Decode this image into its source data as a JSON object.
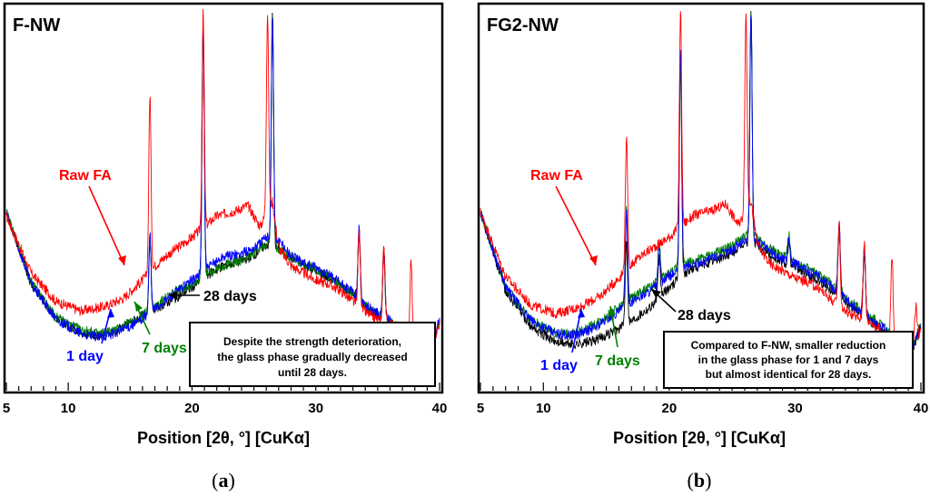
{
  "chart_data": [
    {
      "type": "line",
      "panel_title": "F-NW",
      "sub_label": "a",
      "xlabel": "Position [2θ, °] [CuKα]",
      "ylabel": "",
      "xlim": [
        5,
        40
      ],
      "x_ticks": [
        5,
        10,
        20,
        30,
        40
      ],
      "note": [
        "Despite the strength deterioration,",
        "the glass phase gradually decreased",
        "until 28 days."
      ],
      "series": [
        {
          "name": "Raw FA",
          "label": "Raw FA",
          "color": "#ff0000",
          "x": [
            5,
            7,
            9,
            11,
            13,
            14.5,
            16,
            17,
            18,
            20,
            21,
            22,
            23.5,
            24.5,
            25.5,
            26.5,
            27,
            28,
            29,
            30,
            31,
            32,
            33,
            34,
            35,
            36,
            37,
            38,
            39,
            40
          ],
          "y": [
            245,
            165,
            125,
            112,
            118,
            130,
            155,
            175,
            190,
            215,
            230,
            245,
            252,
            260,
            230,
            265,
            200,
            175,
            165,
            155,
            150,
            140,
            125,
            110,
            100,
            95,
            80,
            60,
            45,
            95
          ],
          "peaks": [
            [
              16.6,
              415
            ],
            [
              20.9,
              530
            ],
            [
              26.1,
              530
            ],
            [
              33.5,
              225
            ],
            [
              35.5,
              205
            ],
            [
              37.7,
              185
            ]
          ]
        },
        {
          "name": "1 day",
          "label": "1 day",
          "color": "#0000ff",
          "x": [
            5,
            7,
            9,
            11,
            12.5,
            14,
            15.5,
            17,
            18.5,
            20,
            21.5,
            22.5,
            24,
            25,
            26,
            27,
            28,
            29,
            30,
            31,
            32,
            33,
            34,
            35,
            36,
            37,
            38,
            39,
            40
          ],
          "y": [
            248,
            150,
            100,
            80,
            75,
            82,
            95,
            115,
            135,
            155,
            175,
            188,
            192,
            200,
            215,
            210,
            190,
            180,
            172,
            163,
            150,
            138,
            120,
            108,
            98,
            85,
            65,
            45,
            100
          ],
          "peaks": [
            [
              16.6,
              220
            ],
            [
              20.9,
              520
            ],
            [
              26.5,
              530
            ],
            [
              33.5,
              230
            ],
            [
              35.5,
              200
            ]
          ]
        },
        {
          "name": "7 days",
          "label": "7 days",
          "color": "#008000",
          "x": [
            5,
            7,
            9,
            11,
            12.5,
            14,
            15.5,
            17,
            18.5,
            20,
            21.5,
            22.5,
            24,
            25,
            26,
            27,
            28,
            29,
            30,
            31,
            32,
            33,
            34,
            35,
            36,
            37,
            38,
            39,
            40
          ],
          "y": [
            250,
            152,
            103,
            85,
            80,
            86,
            100,
            118,
            138,
            150,
            165,
            175,
            183,
            192,
            207,
            200,
            187,
            178,
            170,
            160,
            148,
            136,
            119,
            107,
            97,
            84,
            63,
            44,
            98
          ],
          "peaks": [
            [
              16.6,
              215
            ],
            [
              20.9,
              515
            ],
            [
              26.5,
              530
            ],
            [
              33.5,
              225
            ],
            [
              35.5,
              195
            ]
          ]
        },
        {
          "name": "28 days",
          "label": "28 days",
          "color": "#000000",
          "x": [
            5,
            7,
            9,
            11,
            12.5,
            14,
            15.5,
            17,
            18.5,
            20,
            21.5,
            22.5,
            24,
            25,
            26,
            27,
            28,
            29,
            30,
            31,
            32,
            33,
            34,
            35,
            36,
            37,
            38,
            39,
            40
          ],
          "y": [
            250,
            150,
            102,
            82,
            78,
            85,
            100,
            115,
            128,
            145,
            165,
            175,
            182,
            190,
            205,
            198,
            186,
            177,
            169,
            159,
            147,
            135,
            118,
            106,
            96,
            83,
            62,
            43,
            97
          ],
          "peaks": [
            [
              16.6,
              210
            ],
            [
              20.9,
              510
            ],
            [
              26.5,
              530
            ],
            [
              33.5,
              220
            ],
            [
              35.5,
              192
            ]
          ]
        }
      ]
    },
    {
      "type": "line",
      "panel_title": "FG2-NW",
      "sub_label": "b",
      "xlabel": "Position [2θ, °] [CuKα]",
      "ylabel": "",
      "xlim": [
        5,
        40
      ],
      "x_ticks": [
        5,
        10,
        20,
        30,
        40
      ],
      "note": [
        "Compared to F-NW, smaller reduction",
        "in the glass phase for 1 and 7 days",
        "but almost identical for 28 days."
      ],
      "series": [
        {
          "name": "Raw FA",
          "label": "Raw FA",
          "color": "#ff0000",
          "x": [
            5,
            7,
            9,
            11,
            13,
            14.5,
            16,
            17,
            18,
            20,
            21,
            22,
            23.5,
            24.5,
            25.5,
            26.5,
            27,
            28,
            29,
            30,
            31,
            32,
            33,
            34,
            35,
            36,
            37,
            38,
            39,
            40
          ],
          "y": [
            250,
            160,
            120,
            108,
            118,
            132,
            158,
            178,
            192,
            215,
            232,
            246,
            253,
            262,
            232,
            266,
            205,
            178,
            168,
            158,
            152,
            142,
            126,
            112,
            102,
            96,
            82,
            62,
            48,
            85
          ],
          "peaks": [
            [
              16.6,
              355
            ],
            [
              20.9,
              530
            ],
            [
              26.1,
              530
            ],
            [
              33.5,
              230
            ],
            [
              35.5,
              210
            ],
            [
              37.7,
              190
            ],
            [
              39.6,
              120
            ]
          ]
        },
        {
          "name": "1 day",
          "label": "1 day",
          "color": "#0000ff",
          "x": [
            5,
            7,
            9,
            11,
            12.5,
            14,
            15.5,
            17,
            18.5,
            20,
            21.5,
            22.5,
            24,
            25,
            26,
            27,
            28,
            29,
            30,
            31,
            32,
            33,
            34,
            35,
            36,
            37,
            38,
            39,
            40
          ],
          "y": [
            250,
            145,
            98,
            80,
            77,
            88,
            105,
            125,
            140,
            160,
            175,
            180,
            190,
            198,
            212,
            210,
            195,
            185,
            178,
            168,
            158,
            145,
            128,
            113,
            100,
            88,
            68,
            48,
            90
          ],
          "peaks": [
            [
              16.6,
              250
            ],
            [
              19.2,
              200
            ],
            [
              20.9,
              485
            ],
            [
              26.5,
              530
            ],
            [
              29.5,
              215
            ],
            [
              33.5,
              235
            ],
            [
              35.5,
              200
            ]
          ]
        },
        {
          "name": "7 days",
          "label": "7 days",
          "color": "#008000",
          "x": [
            5,
            7,
            9,
            11,
            12.5,
            14,
            15.5,
            17,
            18.5,
            20,
            21.5,
            22.5,
            24,
            25,
            26,
            27,
            28,
            29,
            30,
            31,
            32,
            33,
            34,
            35,
            36,
            37,
            38,
            39,
            40
          ],
          "y": [
            250,
            145,
            99,
            82,
            80,
            92,
            110,
            130,
            145,
            165,
            180,
            185,
            195,
            203,
            217,
            214,
            199,
            189,
            181,
            171,
            161,
            148,
            131,
            116,
            103,
            91,
            71,
            50,
            92
          ],
          "peaks": [
            [
              16.6,
              255
            ],
            [
              19.2,
              205
            ],
            [
              20.9,
              470
            ],
            [
              26.5,
              530
            ],
            [
              29.5,
              220
            ],
            [
              33.5,
              238
            ],
            [
              35.5,
              202
            ]
          ]
        },
        {
          "name": "28 days",
          "label": "28 days",
          "color": "#000000",
          "x": [
            5,
            7,
            9,
            11,
            12.5,
            14,
            15.5,
            17,
            18.5,
            20,
            21.5,
            22.5,
            24,
            25,
            26,
            27,
            28,
            29,
            30,
            31,
            32,
            33,
            34,
            35,
            36,
            37,
            38,
            39,
            40
          ],
          "y": [
            250,
            140,
            90,
            68,
            65,
            70,
            82,
            98,
            118,
            145,
            168,
            175,
            185,
            193,
            207,
            205,
            190,
            180,
            173,
            163,
            153,
            140,
            124,
            110,
            97,
            85,
            65,
            45,
            87
          ],
          "peaks": [
            [
              16.6,
              215
            ],
            [
              19.2,
              185
            ],
            [
              20.9,
              460
            ],
            [
              26.5,
              530
            ],
            [
              29.5,
              205
            ],
            [
              33.5,
              228
            ],
            [
              35.5,
              195
            ]
          ]
        }
      ]
    }
  ],
  "annotations": {
    "raw_fa": "Raw FA",
    "day1": "1 day",
    "day7": "7 days",
    "day28": "28 days"
  }
}
